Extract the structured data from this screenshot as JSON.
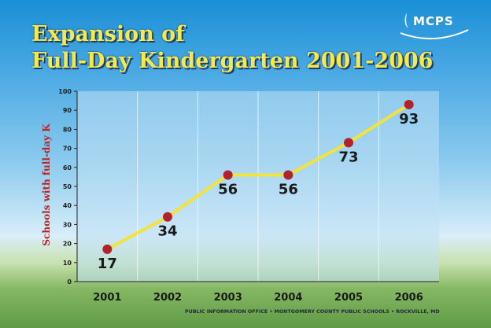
{
  "header": {
    "title_line1": "Expansion of",
    "title_line2": "Full-Day Kindergarten 2001-2006",
    "logo_text": "MCPS"
  },
  "footer": {
    "credit": "PUBLIC INFORMATION OFFICE • MONTGOMERY COUNTY PUBLIC SCHOOLS • ROCKVILLE, MD"
  },
  "colors": {
    "title": "#f7e94a",
    "line": "#f4e33a",
    "marker": "#b3222c",
    "axis_label": "#b0272a",
    "data_label": "#1a1a1a"
  },
  "chart_data": {
    "type": "line",
    "title": "Expansion of Full-Day Kindergarten 2001-2006",
    "xlabel": "",
    "ylabel": "Schools with full-day K",
    "categories": [
      "2001",
      "2002",
      "2003",
      "2004",
      "2005",
      "2006"
    ],
    "values": [
      17,
      34,
      56,
      56,
      73,
      93
    ],
    "ylim": [
      0,
      100
    ],
    "yticks": [
      0,
      10,
      20,
      30,
      40,
      50,
      60,
      70,
      80,
      90,
      100
    ],
    "grid": "vertical",
    "legend": "none"
  }
}
